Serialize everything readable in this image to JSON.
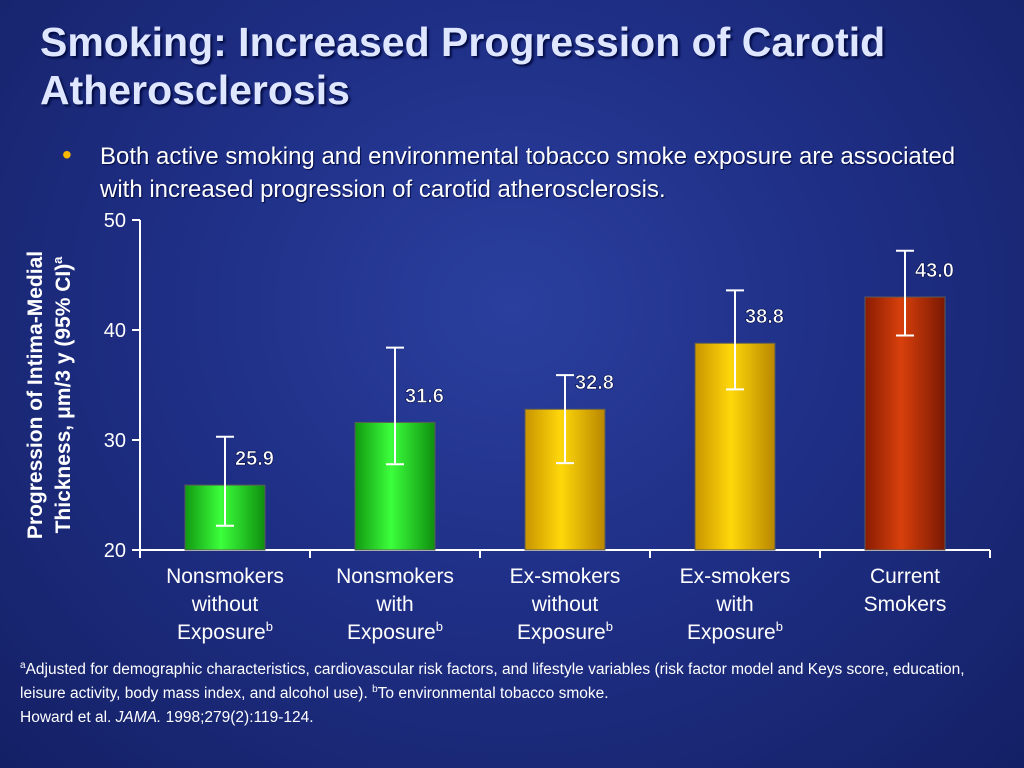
{
  "slide": {
    "title": "Smoking: Increased Progression of Carotid Atherosclerosis",
    "bullet": "Both active smoking and environmental tobacco smoke exposure are associated with increased progression of carotid atherosclerosis.",
    "bullet_color": "#f5b800"
  },
  "chart_data": {
    "type": "bar",
    "ylabel_line1": "Progression of Intima-Medial",
    "ylabel_line2": "Thickness, μm/3 y (95% CI)",
    "ylabel_sup": "a",
    "ylim": [
      20,
      50
    ],
    "yticks": [
      20,
      30,
      40,
      50
    ],
    "categories": [
      {
        "lines": [
          "Nonsmokers",
          "without",
          "Exposure"
        ],
        "sup": "b"
      },
      {
        "lines": [
          "Nonsmokers",
          "with",
          "Exposure"
        ],
        "sup": "b"
      },
      {
        "lines": [
          "Ex-smokers",
          "without",
          "Exposure"
        ],
        "sup": "b"
      },
      {
        "lines": [
          "Ex-smokers",
          "with",
          "Exposure"
        ],
        "sup": "b"
      },
      {
        "lines": [
          "Current",
          "Smokers"
        ],
        "sup": ""
      }
    ],
    "values": [
      25.9,
      31.6,
      32.8,
      38.8,
      43.0
    ],
    "value_labels": [
      "25.9",
      "31.6",
      "32.8",
      "38.8",
      "43.0"
    ],
    "ci_low": [
      22.2,
      27.8,
      27.9,
      34.6,
      39.5
    ],
    "ci_high": [
      30.3,
      38.4,
      35.9,
      43.6,
      47.2
    ],
    "bar_colors": [
      "#22dd22",
      "#22dd22",
      "#f0c000",
      "#f0c000",
      "#b82e05"
    ]
  },
  "footnote": {
    "sup_a": "a",
    "text_a_1": "Adjusted for demographic characteristics, cardiovascular risk factors, and lifestyle variables (risk factor model and Keys score, education, leisure activity, body mass index, and alcohol use). ",
    "sup_b": "b",
    "text_b": "To environmental tobacco smoke.",
    "ref_authors": "Howard et al. ",
    "ref_journal": "JAMA.",
    "ref_details": " 1998;279(2):119-124."
  }
}
